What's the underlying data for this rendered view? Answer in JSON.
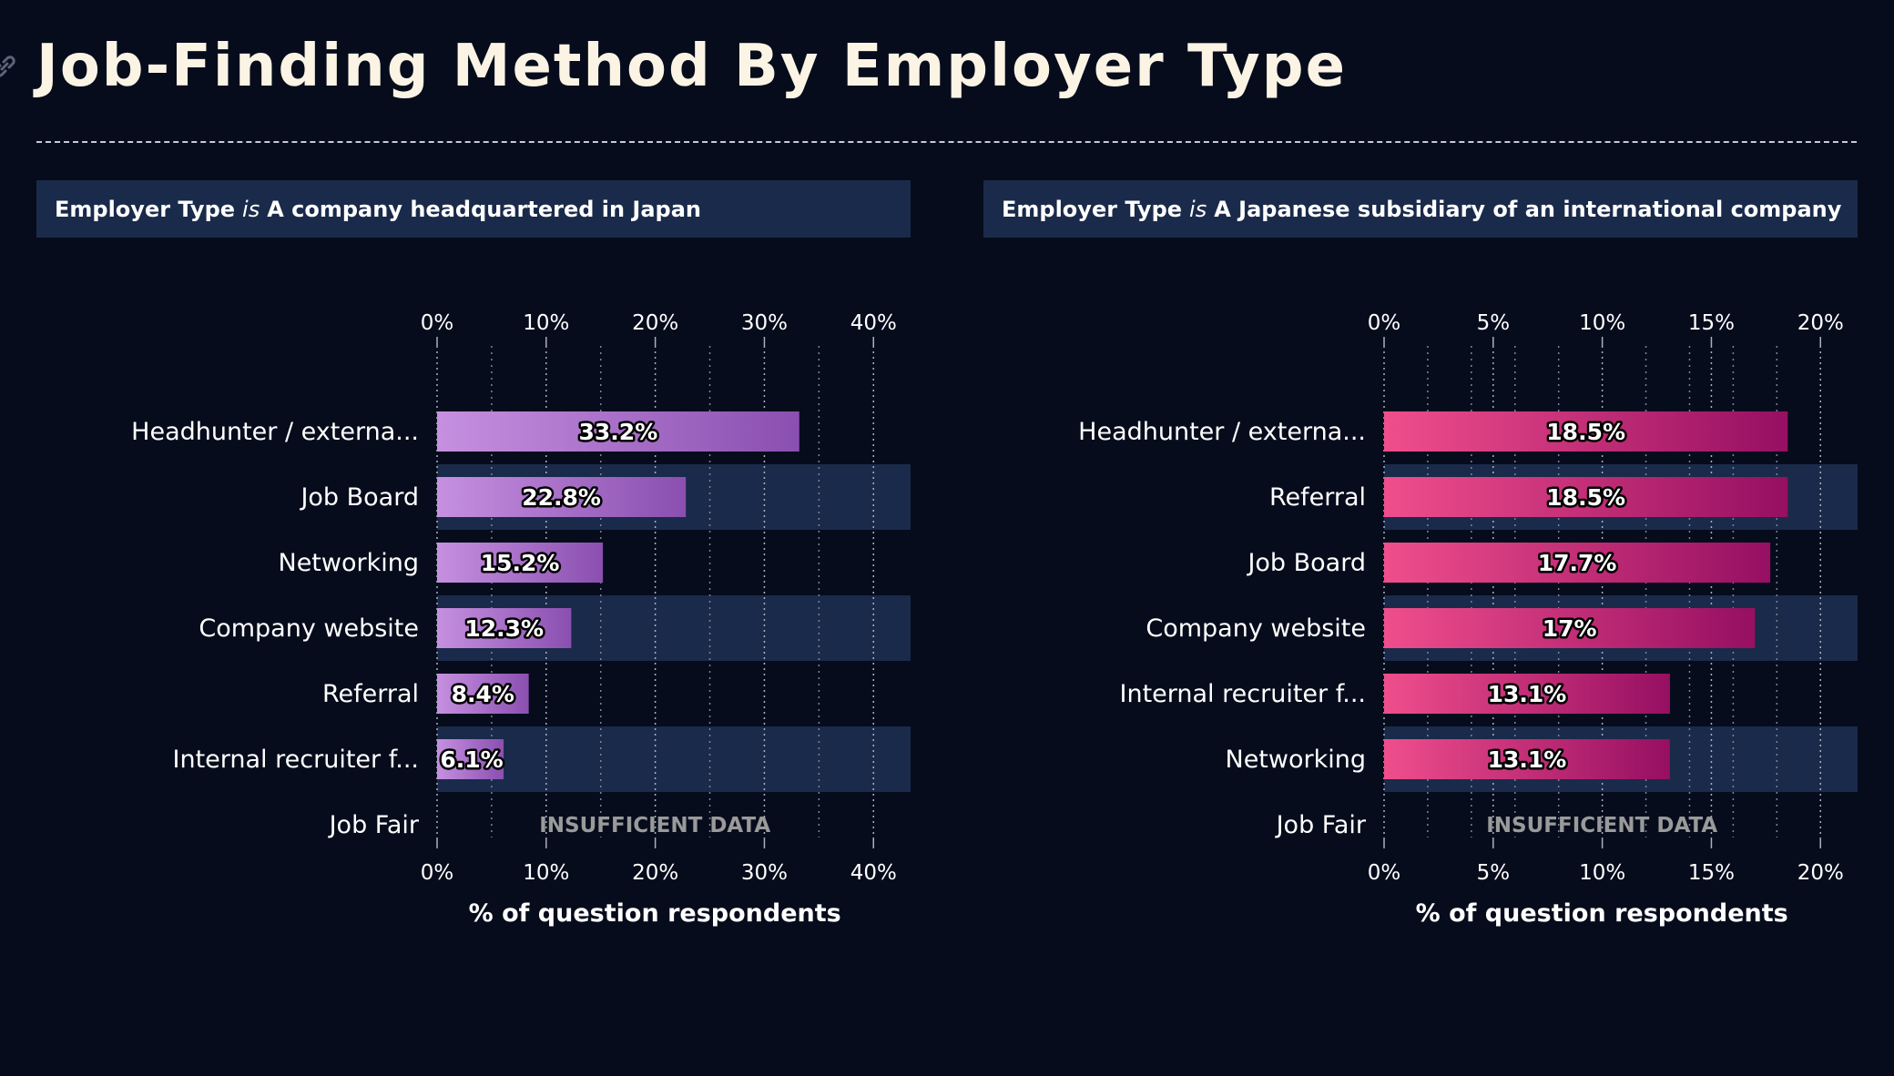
{
  "page": {
    "title": "Job-Finding Method By Employer Type"
  },
  "colors": {
    "background": "#060c1c",
    "header_bg": "#1a2a4a",
    "band_bg": "#1a2a4a",
    "title_color": "#fbf4e4",
    "purple_start": "#c690e0",
    "purple_end": "#8a4fb0",
    "pink_start": "#ef4e8c",
    "pink_end": "#960f62"
  },
  "icons": [
    "link-icon"
  ],
  "panels": [
    {
      "header": {
        "field": "Employer Type",
        "operator": "is",
        "value": "A company headquartered in Japan"
      },
      "insufficient_label": "INSUFFICIENT DATA",
      "xlabel": "% of question respondents"
    },
    {
      "header": {
        "field": "Employer Type",
        "operator": "is",
        "value": "A Japanese subsidiary of an international company"
      },
      "insufficient_label": "INSUFFICIENT DATA",
      "xlabel": "% of question respondents"
    }
  ],
  "chart_data": [
    {
      "type": "bar",
      "orientation": "horizontal",
      "categories": [
        "Headhunter / externa...",
        "Job Board",
        "Networking",
        "Company website",
        "Referral",
        "Internal recruiter f...",
        "Job Fair"
      ],
      "values": [
        33.2,
        22.8,
        15.2,
        12.3,
        8.4,
        6.1,
        null
      ],
      "value_labels": [
        "33.2%",
        "22.8%",
        "15.2%",
        "12.3%",
        "8.4%",
        "6.1%",
        ""
      ],
      "xlim": [
        0,
        43.4
      ],
      "xticks": [
        0,
        10,
        20,
        30,
        40
      ],
      "xtick_labels": [
        "0%",
        "10%",
        "20%",
        "30%",
        "40%"
      ],
      "minor_gridlines": [
        5,
        15,
        25,
        35
      ],
      "xlabel": "% of question respondents",
      "grid": true,
      "color_gradient": [
        "#c690e0",
        "#8a4fb0"
      ]
    },
    {
      "type": "bar",
      "orientation": "horizontal",
      "categories": [
        "Headhunter / externa...",
        "Referral",
        "Job Board",
        "Company website",
        "Internal recruiter f...",
        "Networking",
        "Job Fair"
      ],
      "values": [
        18.5,
        18.5,
        17.7,
        17,
        13.1,
        13.1,
        null
      ],
      "value_labels": [
        "18.5%",
        "18.5%",
        "17.7%",
        "17%",
        "13.1%",
        "13.1%",
        ""
      ],
      "xlim": [
        0,
        21.7
      ],
      "xticks": [
        0,
        5,
        10,
        15,
        20
      ],
      "xtick_labels": [
        "0%",
        "5%",
        "10%",
        "15%",
        "20%"
      ],
      "minor_gridlines": [
        2,
        4,
        6,
        8,
        12,
        14,
        16,
        18
      ],
      "xlabel": "% of question respondents",
      "grid": true,
      "color_gradient": [
        "#ef4e8c",
        "#960f62"
      ]
    }
  ]
}
